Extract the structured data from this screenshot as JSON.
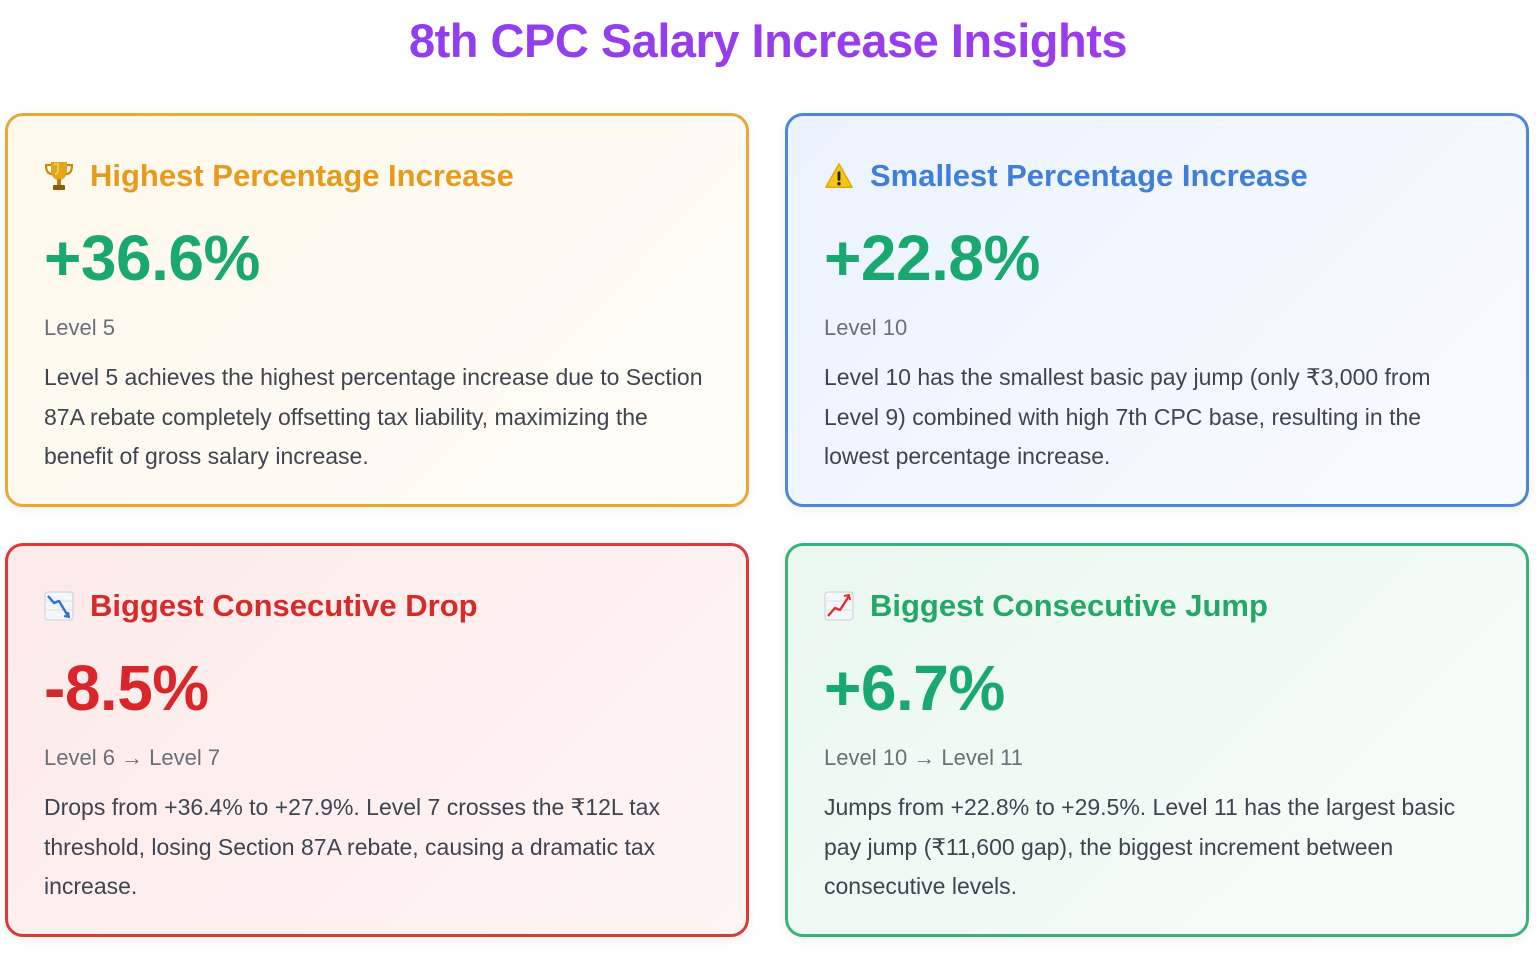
{
  "page": {
    "title": "8th CPC Salary Increase Insights"
  },
  "cards": [
    {
      "icon": "trophy-icon",
      "title": "Highest Percentage Increase",
      "value": "+36.6%",
      "subtitle": "Level 5",
      "description": "Level 5 achieves the highest percentage increase due to Section 87A rebate completely offsetting tax liability, maximizing the benefit of gross salary increase.",
      "accent": "#e89a1c"
    },
    {
      "icon": "warning-icon",
      "title": "Smallest Percentage Increase",
      "value": "+22.8%",
      "subtitle": "Level 10",
      "description": "Level 10 has the smallest basic pay jump (only ₹3,000 from Level 9) combined with high 7th CPC base, resulting in the lowest percentage increase.",
      "accent": "#3f7fd8"
    },
    {
      "icon": "chart-decreasing-icon",
      "title": "Biggest Consecutive Drop",
      "value": "-8.5%",
      "subtitle": "Level 6 → Level 7",
      "description": "Drops from +36.4% to +27.9%. Level 7 crosses the ₹12L tax threshold, losing Section 87A rebate, causing a dramatic tax increase.",
      "accent": "#d92a2a"
    },
    {
      "icon": "chart-increasing-icon",
      "title": "Biggest Consecutive Jump",
      "value": "+6.7%",
      "subtitle": "Level 10 → Level 11",
      "description": "Jumps from +22.8% to +29.5%. Level 11 has the largest basic pay jump (₹11,600 gap), the biggest increment between consecutive levels.",
      "accent": "#23a866"
    }
  ]
}
